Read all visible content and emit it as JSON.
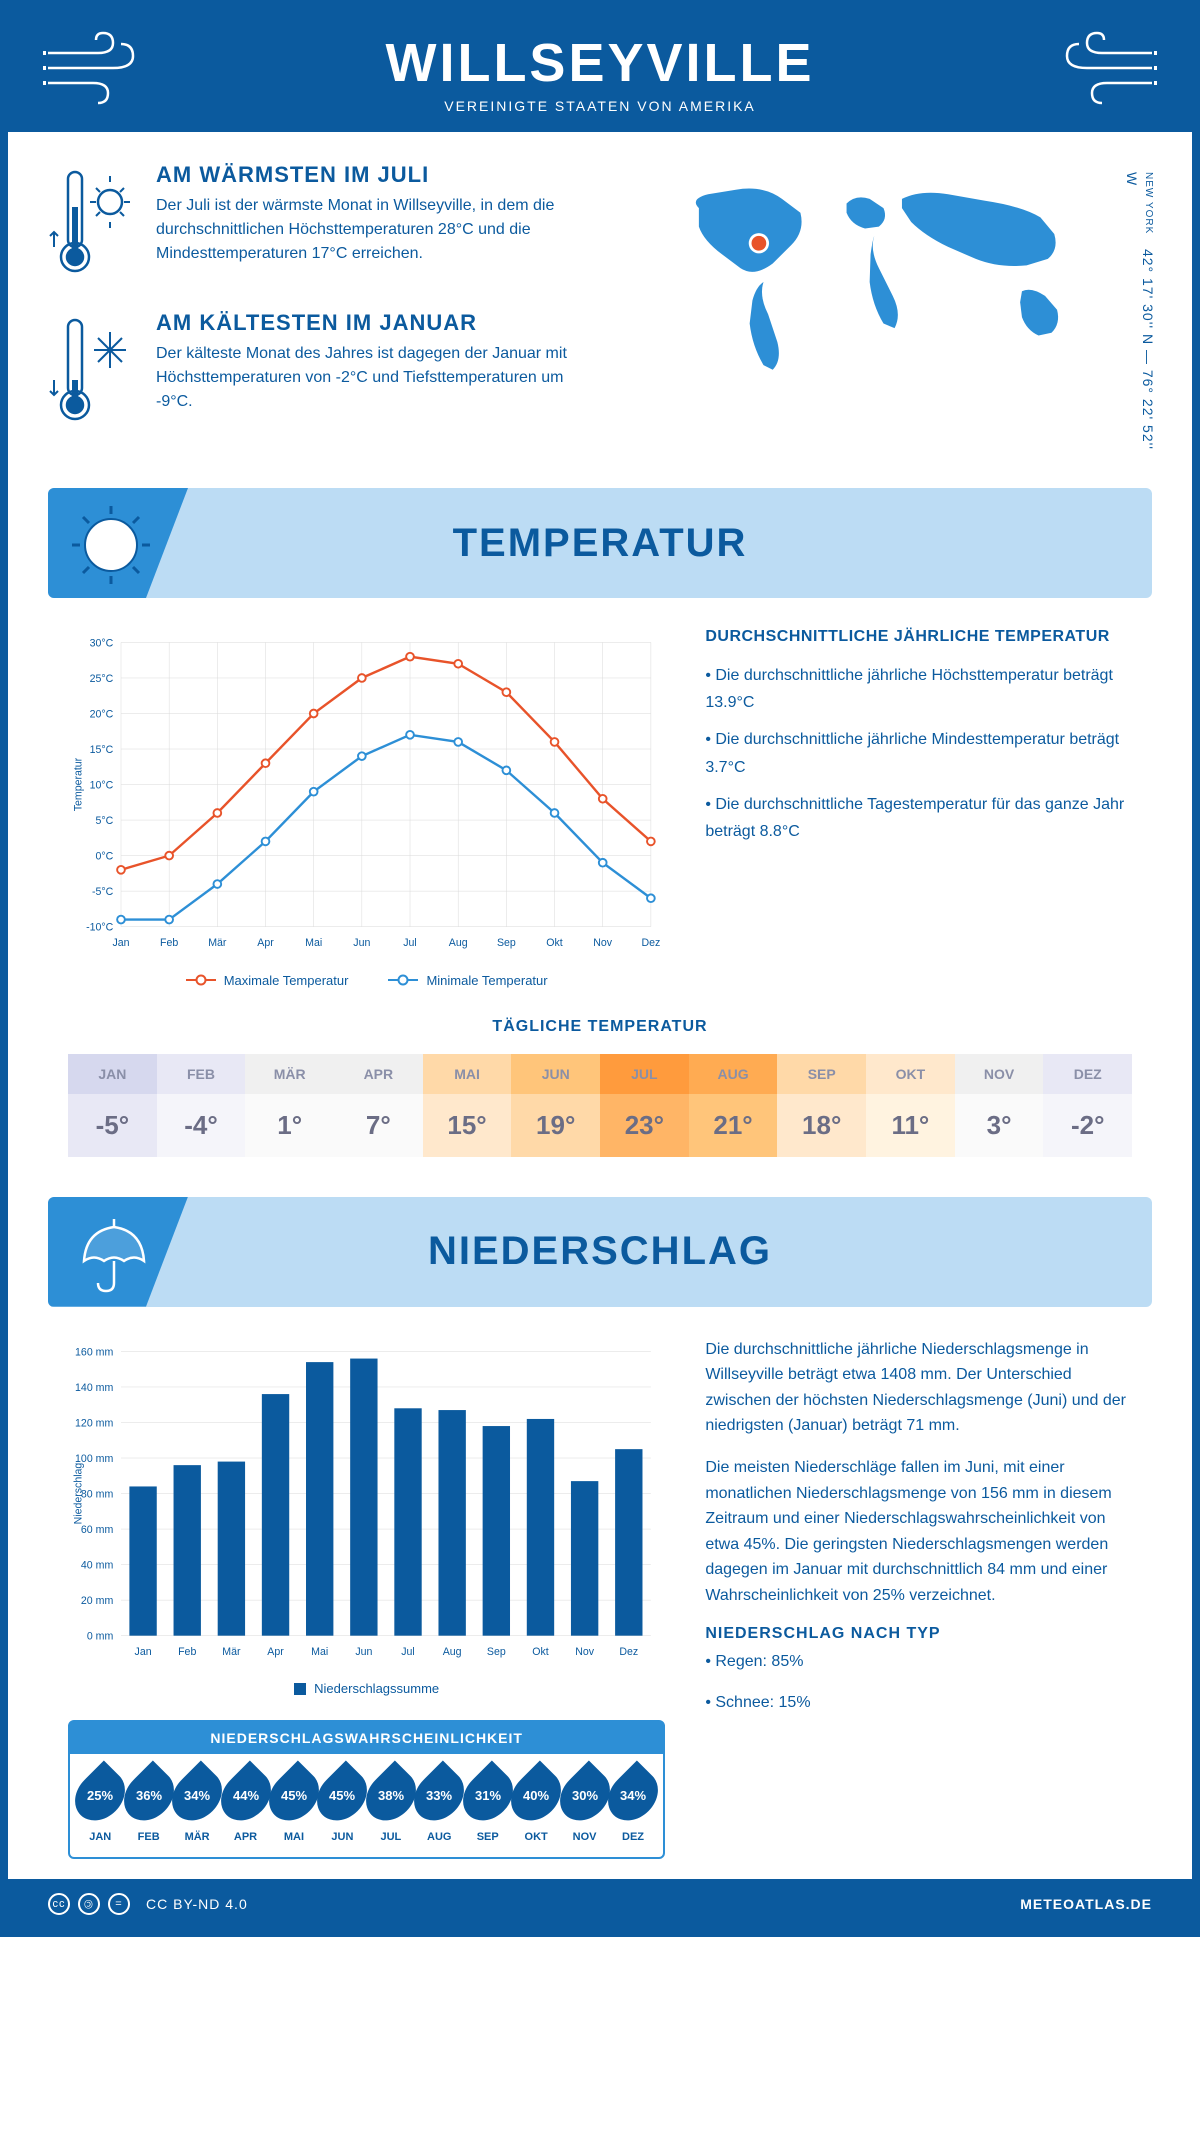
{
  "header": {
    "title": "WILLSEYVILLE",
    "subtitle": "VEREINIGTE STAATEN VON AMERIKA",
    "coords": "42° 17' 30'' N — 76° 22' 52'' W",
    "state": "NEW YORK"
  },
  "intro": {
    "warm": {
      "title": "AM WÄRMSTEN IM JULI",
      "text": "Der Juli ist der wärmste Monat in Willseyville, in dem die durchschnittlichen Höchsttemperaturen 28°C und die Mindesttemperaturen 17°C erreichen."
    },
    "cold": {
      "title": "AM KÄLTESTEN IM JANUAR",
      "text": "Der kälteste Monat des Jahres ist dagegen der Januar mit Höchsttemperaturen von -2°C und Tiefsttemperaturen um -9°C."
    }
  },
  "sections": {
    "temp": "TEMPERATUR",
    "precip": "NIEDERSCHLAG"
  },
  "temp_chart": {
    "type": "line",
    "months": [
      "Jan",
      "Feb",
      "Mär",
      "Apr",
      "Mai",
      "Jun",
      "Jul",
      "Aug",
      "Sep",
      "Okt",
      "Nov",
      "Dez"
    ],
    "max_values": [
      -2,
      0,
      6,
      13,
      20,
      25,
      28,
      27,
      23,
      16,
      8,
      2
    ],
    "min_values": [
      -9,
      -9,
      -4,
      2,
      9,
      14,
      17,
      16,
      12,
      6,
      -1,
      -6
    ],
    "max_color": "#e8532a",
    "min_color": "#2d8fd6",
    "ylim": [
      -10,
      30
    ],
    "ytick_step": 5,
    "ylabel": "Temperatur",
    "legend_max": "Maximale Temperatur",
    "legend_min": "Minimale Temperatur",
    "grid_color": "#d8d8d8",
    "background": "#ffffff"
  },
  "temp_info": {
    "heading": "DURCHSCHNITTLICHE JÄHRLICHE TEMPERATUR",
    "bullets": [
      "• Die durchschnittliche jährliche Höchsttemperatur beträgt 13.9°C",
      "• Die durchschnittliche jährliche Mindesttemperatur beträgt 3.7°C",
      "• Die durchschnittliche Tagestemperatur für das ganze Jahr beträgt 8.8°C"
    ]
  },
  "daily_temp": {
    "heading": "TÄGLICHE TEMPERATUR",
    "months": [
      "JAN",
      "FEB",
      "MÄR",
      "APR",
      "MAI",
      "JUN",
      "JUL",
      "AUG",
      "SEP",
      "OKT",
      "NOV",
      "DEZ"
    ],
    "values": [
      "-5°",
      "-4°",
      "1°",
      "7°",
      "15°",
      "19°",
      "23°",
      "21°",
      "18°",
      "11°",
      "3°",
      "-2°"
    ],
    "header_colors": [
      "#d6d8ee",
      "#e8e8f5",
      "#f0f0f0",
      "#f0f0f0",
      "#ffd9a8",
      "#ffc57a",
      "#ff9b3d",
      "#ffab52",
      "#ffd9a8",
      "#ffe8cc",
      "#f0f0f0",
      "#e8e8f5"
    ],
    "value_colors": [
      "#e8e8f5",
      "#f5f5fa",
      "#fafafa",
      "#fafafa",
      "#ffe8cc",
      "#ffd9a8",
      "#ffb566",
      "#ffc57a",
      "#ffe8cc",
      "#fff3e0",
      "#fafafa",
      "#f5f5fa"
    ]
  },
  "precip_chart": {
    "type": "bar",
    "months": [
      "Jan",
      "Feb",
      "Mär",
      "Apr",
      "Mai",
      "Jun",
      "Jul",
      "Aug",
      "Sep",
      "Okt",
      "Nov",
      "Dez"
    ],
    "values": [
      84,
      96,
      98,
      136,
      154,
      156,
      128,
      127,
      118,
      122,
      87,
      105
    ],
    "bar_color": "#0b5a9e",
    "ylim": [
      0,
      160
    ],
    "ytick_step": 20,
    "ylabel": "Niederschlag",
    "legend": "Niederschlagssumme",
    "grid_color": "#d8d8d8"
  },
  "precip_info": {
    "para1": "Die durchschnittliche jährliche Niederschlagsmenge in Willseyville beträgt etwa 1408 mm. Der Unterschied zwischen der höchsten Niederschlagsmenge (Juni) und der niedrigsten (Januar) beträgt 71 mm.",
    "para2": "Die meisten Niederschläge fallen im Juni, mit einer monatlichen Niederschlagsmenge von 156 mm in diesem Zeitraum und einer Niederschlagswahrscheinlichkeit von etwa 45%. Die geringsten Niederschlagsmengen werden dagegen im Januar mit durchschnittlich 84 mm und einer Wahrscheinlichkeit von 25% verzeichnet.",
    "type_heading": "NIEDERSCHLAG NACH TYP",
    "type_rain": "• Regen: 85%",
    "type_snow": "• Schnee: 15%"
  },
  "precip_prob": {
    "heading": "NIEDERSCHLAGSWAHRSCHEINLICHKEIT",
    "months": [
      "JAN",
      "FEB",
      "MÄR",
      "APR",
      "MAI",
      "JUN",
      "JUL",
      "AUG",
      "SEP",
      "OKT",
      "NOV",
      "DEZ"
    ],
    "values": [
      "25%",
      "36%",
      "34%",
      "44%",
      "45%",
      "45%",
      "38%",
      "33%",
      "31%",
      "40%",
      "30%",
      "34%"
    ]
  },
  "footer": {
    "license": "CC BY-ND 4.0",
    "site": "METEOATLAS.DE"
  },
  "colors": {
    "primary": "#0b5a9e",
    "secondary": "#2d8fd6",
    "light": "#bcdcf4"
  }
}
